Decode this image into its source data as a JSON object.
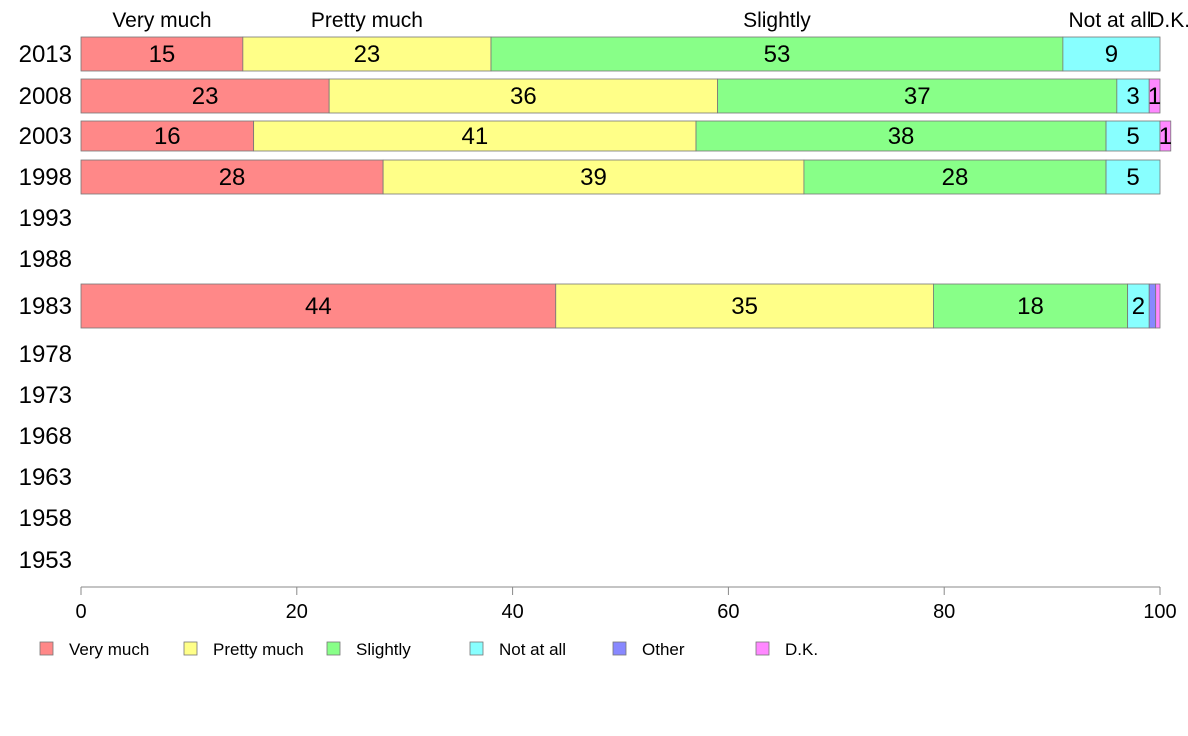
{
  "chart_data": {
    "type": "bar",
    "orientation": "horizontal",
    "stacked": true,
    "categories": [
      "2013",
      "2008",
      "2003",
      "1998",
      "1993",
      "1988",
      "1983",
      "1978",
      "1973",
      "1968",
      "1963",
      "1958",
      "1953"
    ],
    "series": [
      {
        "name": "Very much",
        "color": "#ff8888",
        "values": [
          15,
          23,
          16,
          28,
          null,
          null,
          44,
          null,
          null,
          null,
          null,
          null,
          null
        ]
      },
      {
        "name": "Pretty much",
        "color": "#ffff88",
        "values": [
          23,
          36,
          41,
          39,
          null,
          null,
          35,
          null,
          null,
          null,
          null,
          null,
          null
        ]
      },
      {
        "name": "Slightly",
        "color": "#88ff88",
        "values": [
          53,
          37,
          38,
          28,
          null,
          null,
          18,
          null,
          null,
          null,
          null,
          null,
          null
        ]
      },
      {
        "name": "Not at all",
        "color": "#88ffff",
        "values": [
          9,
          3,
          5,
          5,
          null,
          null,
          2,
          null,
          null,
          null,
          null,
          null,
          null
        ]
      },
      {
        "name": "Other",
        "color": "#8888ff",
        "values": [
          0,
          0,
          0,
          0,
          null,
          null,
          0.6,
          null,
          null,
          null,
          null,
          null,
          null
        ]
      },
      {
        "name": "D.K.",
        "color": "#ff88ff",
        "values": [
          0,
          1,
          1,
          0,
          null,
          null,
          0.4,
          null,
          null,
          null,
          null,
          null,
          null
        ]
      }
    ],
    "segment_labels": [
      [
        "15",
        "23",
        "53",
        "9",
        "",
        ""
      ],
      [
        "23",
        "36",
        "37",
        "3",
        "",
        "1"
      ],
      [
        "16",
        "41",
        "38",
        "5",
        "",
        "1"
      ],
      [
        "28",
        "39",
        "28",
        "5",
        "",
        ""
      ],
      [],
      [],
      [
        "44",
        "35",
        "18",
        "2",
        "",
        ""
      ],
      [],
      [],
      [],
      [],
      [],
      []
    ],
    "top_labels": [
      "Very much",
      "Pretty much",
      "Slightly",
      "Not at all",
      "D.K."
    ],
    "xlim": [
      0,
      100
    ],
    "xticks": [
      "0",
      "20",
      "40",
      "60",
      "80",
      "100"
    ],
    "grid": false,
    "legend_position": "bottom"
  }
}
